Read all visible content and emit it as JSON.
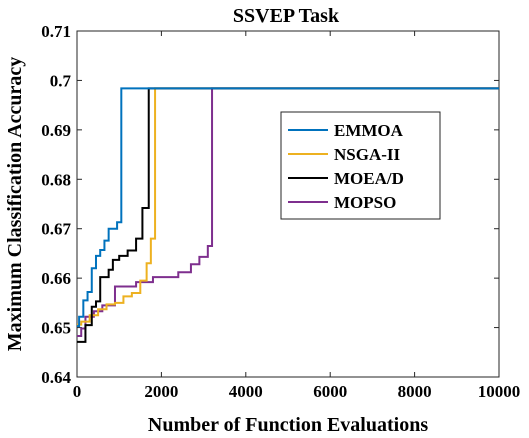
{
  "chart_data": {
    "type": "line",
    "title": "SSVEP Task",
    "xlabel": "Number of Function Evaluations",
    "ylabel": "Maximum Classification Accuracy",
    "xlim": [
      0,
      10000
    ],
    "ylim": [
      0.64,
      0.71
    ],
    "xticks": [
      0,
      2000,
      4000,
      6000,
      8000,
      10000
    ],
    "xtick_labels": [
      "0",
      "2000",
      "4000",
      "6000",
      "8000",
      "10000"
    ],
    "yticks": [
      0.64,
      0.65,
      0.66,
      0.67,
      0.68,
      0.69,
      0.7,
      0.71
    ],
    "ytick_labels": [
      "0.64",
      "0.65",
      "0.66",
      "0.67",
      "0.68",
      "0.69",
      "0.7",
      "0.71"
    ],
    "grid": false,
    "legend_position": "right",
    "series": [
      {
        "name": "EMMOA",
        "color": "#0072BD",
        "x": [
          0,
          50,
          50,
          150,
          150,
          250,
          250,
          350,
          350,
          450,
          450,
          550,
          550,
          650,
          650,
          750,
          750,
          850,
          850,
          950,
          950,
          1050,
          1050,
          10000
        ],
        "y": [
          0.6503,
          0.6503,
          0.6522,
          0.6522,
          0.6555,
          0.6555,
          0.6572,
          0.6572,
          0.662,
          0.662,
          0.6645,
          0.6645,
          0.6657,
          0.6657,
          0.6676,
          0.6676,
          0.67,
          0.67,
          0.67,
          0.67,
          0.6713,
          0.6713,
          0.6984,
          0.6984
        ]
      },
      {
        "name": "NSGA-II",
        "color": "#EDB120",
        "x": [
          0,
          100,
          100,
          300,
          300,
          500,
          500,
          700,
          700,
          900,
          900,
          1100,
          1100,
          1300,
          1300,
          1500,
          1500,
          1650,
          1650,
          1750,
          1750,
          1850,
          1850,
          10000
        ],
        "y": [
          0.6506,
          0.6506,
          0.6512,
          0.6512,
          0.6525,
          0.6525,
          0.6537,
          0.6537,
          0.6547,
          0.6547,
          0.655,
          0.655,
          0.6563,
          0.6563,
          0.657,
          0.657,
          0.6595,
          0.6595,
          0.663,
          0.663,
          0.668,
          0.668,
          0.6984,
          0.6984
        ]
      },
      {
        "name": "MOEA/D",
        "color": "#000000",
        "x": [
          0,
          200,
          200,
          350,
          350,
          450,
          450,
          550,
          550,
          750,
          750,
          850,
          850,
          1000,
          1000,
          1200,
          1200,
          1400,
          1400,
          1550,
          1550,
          1700,
          1700,
          10000
        ],
        "y": [
          0.6471,
          0.6471,
          0.6505,
          0.6505,
          0.6542,
          0.6542,
          0.6553,
          0.6553,
          0.6602,
          0.6602,
          0.6617,
          0.6617,
          0.6637,
          0.6637,
          0.6645,
          0.6645,
          0.6656,
          0.6656,
          0.668,
          0.668,
          0.6742,
          0.6742,
          0.6984,
          0.6984
        ]
      },
      {
        "name": "MOPSO",
        "color": "#7E2F8E",
        "x": [
          0,
          100,
          100,
          200,
          200,
          400,
          400,
          600,
          600,
          900,
          900,
          1400,
          1400,
          1800,
          1800,
          2400,
          2400,
          2700,
          2700,
          2900,
          2900,
          3100,
          3100,
          3200,
          3200,
          10000
        ],
        "y": [
          0.6483,
          0.6483,
          0.6498,
          0.6498,
          0.6522,
          0.6522,
          0.6533,
          0.6533,
          0.6545,
          0.6545,
          0.6583,
          0.6583,
          0.6592,
          0.6592,
          0.6602,
          0.6602,
          0.6612,
          0.6612,
          0.6628,
          0.6628,
          0.6643,
          0.6643,
          0.6665,
          0.6665,
          0.6984,
          0.6984
        ]
      }
    ]
  }
}
